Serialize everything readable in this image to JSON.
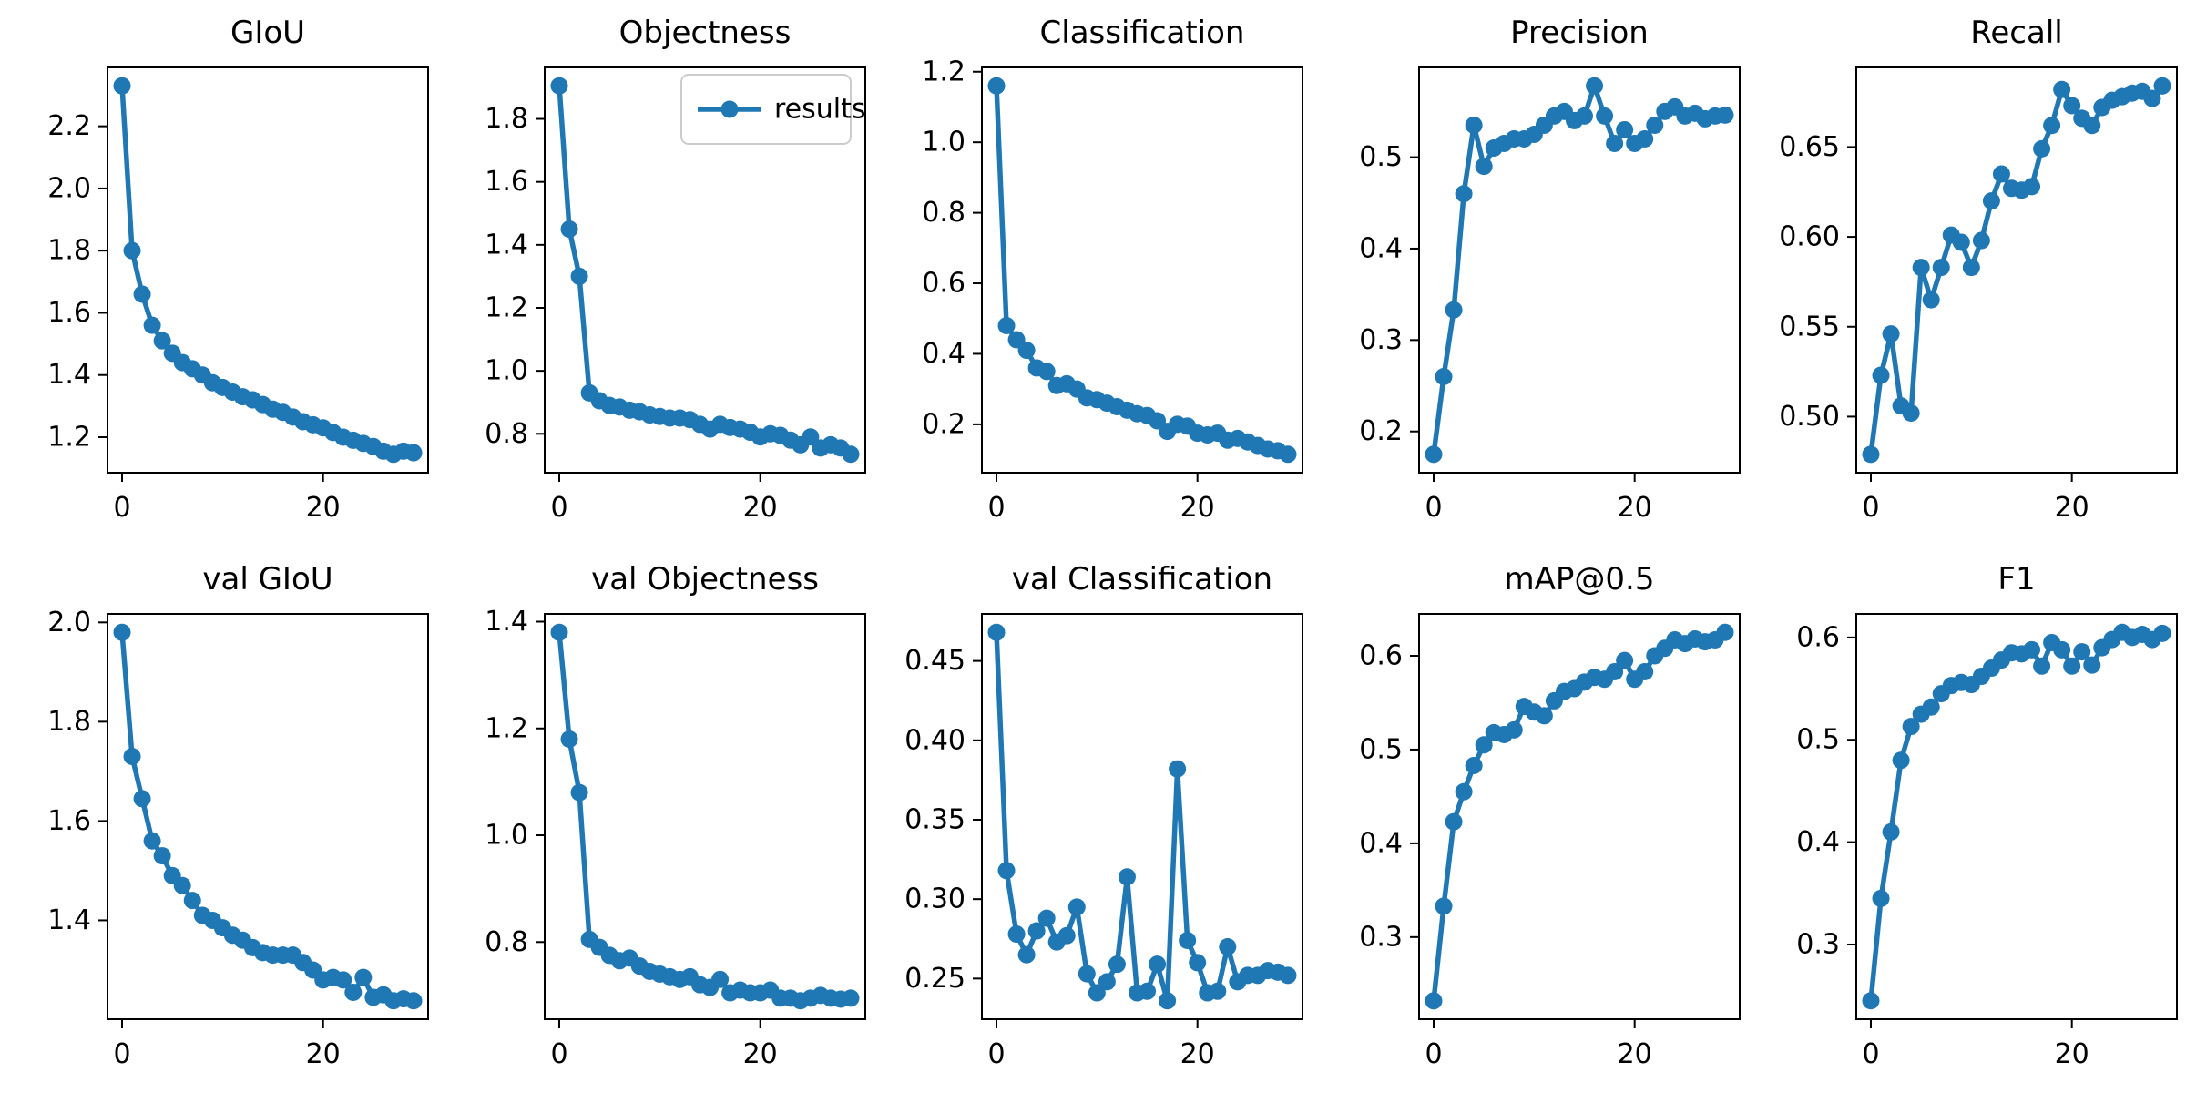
{
  "figure": {
    "background": "#ffffff",
    "accent_color": "#1f77b4",
    "spine_color": "#000000",
    "legend_label": "results",
    "legend_border_color": "#cccccc"
  },
  "chart_data": [
    {
      "type": "line",
      "title": "GIoU",
      "series_name": "results",
      "x": [
        0,
        1,
        2,
        3,
        4,
        5,
        6,
        7,
        8,
        9,
        10,
        11,
        12,
        13,
        14,
        15,
        16,
        17,
        18,
        19,
        20,
        21,
        22,
        23,
        24,
        25,
        26,
        27,
        28,
        29
      ],
      "values": [
        2.33,
        1.8,
        1.66,
        1.56,
        1.51,
        1.47,
        1.44,
        1.42,
        1.4,
        1.375,
        1.36,
        1.345,
        1.33,
        1.32,
        1.305,
        1.29,
        1.28,
        1.265,
        1.25,
        1.24,
        1.23,
        1.215,
        1.2,
        1.19,
        1.18,
        1.17,
        1.155,
        1.145,
        1.155,
        1.15
      ],
      "xlim": [
        -1.45,
        30.45
      ],
      "ylim": [
        1.0858,
        2.3893
      ],
      "xticks": [
        0,
        20
      ],
      "xtick_labels": [
        "0",
        "20"
      ],
      "yticks": [
        2.2,
        2.0,
        1.8,
        1.6,
        1.4,
        1.2
      ],
      "ytick_labels": [
        "2.2",
        "2.0",
        "1.8",
        "1.6",
        "1.4",
        "1.2"
      ],
      "legend": false,
      "grid": false
    },
    {
      "type": "line",
      "title": "Objectness",
      "series_name": "results",
      "x": [
        0,
        1,
        2,
        3,
        4,
        5,
        6,
        7,
        8,
        9,
        10,
        11,
        12,
        13,
        14,
        15,
        16,
        17,
        18,
        19,
        20,
        21,
        22,
        23,
        24,
        25,
        26,
        27,
        28,
        29
      ],
      "values": [
        1.905,
        1.45,
        1.3,
        0.93,
        0.905,
        0.89,
        0.885,
        0.875,
        0.87,
        0.86,
        0.855,
        0.85,
        0.85,
        0.845,
        0.83,
        0.815,
        0.83,
        0.82,
        0.815,
        0.805,
        0.79,
        0.8,
        0.795,
        0.78,
        0.765,
        0.79,
        0.755,
        0.765,
        0.755,
        0.735
      ],
      "xlim": [
        -1.45,
        30.45
      ],
      "ylim": [
        0.6765,
        1.9635
      ],
      "xticks": [
        0,
        20
      ],
      "xtick_labels": [
        "0",
        "20"
      ],
      "yticks": [
        1.8,
        1.6,
        1.4,
        1.2,
        1.0,
        0.8
      ],
      "ytick_labels": [
        "1.8",
        "1.6",
        "1.4",
        "1.2",
        "1.0",
        "0.8"
      ],
      "legend": true,
      "grid": false
    },
    {
      "type": "line",
      "title": "Classification",
      "series_name": "results",
      "x": [
        0,
        1,
        2,
        3,
        4,
        5,
        6,
        7,
        8,
        9,
        10,
        11,
        12,
        13,
        14,
        15,
        16,
        17,
        18,
        19,
        20,
        21,
        22,
        23,
        24,
        25,
        26,
        27,
        28,
        29
      ],
      "values": [
        1.16,
        0.48,
        0.44,
        0.41,
        0.36,
        0.35,
        0.31,
        0.315,
        0.3,
        0.275,
        0.27,
        0.26,
        0.25,
        0.24,
        0.23,
        0.225,
        0.21,
        0.18,
        0.2,
        0.195,
        0.175,
        0.17,
        0.175,
        0.155,
        0.16,
        0.15,
        0.14,
        0.13,
        0.125,
        0.115
      ],
      "xlim": [
        -1.45,
        30.45
      ],
      "ylim": [
        0.0628,
        1.2123
      ],
      "xticks": [
        0,
        20
      ],
      "xtick_labels": [
        "0",
        "20"
      ],
      "yticks": [
        1.2,
        1.0,
        0.8,
        0.6,
        0.4,
        0.2
      ],
      "ytick_labels": [
        "1.2",
        "1.0",
        "0.8",
        "0.6",
        "0.4",
        "0.2"
      ],
      "legend": false,
      "grid": false
    },
    {
      "type": "line",
      "title": "Precision",
      "series_name": "results",
      "x": [
        0,
        1,
        2,
        3,
        4,
        5,
        6,
        7,
        8,
        9,
        10,
        11,
        12,
        13,
        14,
        15,
        16,
        17,
        18,
        19,
        20,
        21,
        22,
        23,
        24,
        25,
        26,
        27,
        28,
        29
      ],
      "values": [
        0.175,
        0.26,
        0.333,
        0.46,
        0.535,
        0.49,
        0.51,
        0.515,
        0.52,
        0.52,
        0.525,
        0.535,
        0.545,
        0.55,
        0.54,
        0.545,
        0.578,
        0.545,
        0.515,
        0.53,
        0.515,
        0.52,
        0.535,
        0.55,
        0.555,
        0.545,
        0.548,
        0.542,
        0.545,
        0.546
      ],
      "xlim": [
        -1.45,
        30.45
      ],
      "ylim": [
        0.1549,
        0.5982
      ],
      "xticks": [
        0,
        20
      ],
      "xtick_labels": [
        "0",
        "20"
      ],
      "yticks": [
        0.5,
        0.4,
        0.3,
        0.2
      ],
      "ytick_labels": [
        "0.5",
        "0.4",
        "0.3",
        "0.2"
      ],
      "legend": false,
      "grid": false
    },
    {
      "type": "line",
      "title": "Recall",
      "series_name": "results",
      "x": [
        0,
        1,
        2,
        3,
        4,
        5,
        6,
        7,
        8,
        9,
        10,
        11,
        12,
        13,
        14,
        15,
        16,
        17,
        18,
        19,
        20,
        21,
        22,
        23,
        24,
        25,
        26,
        27,
        28,
        29
      ],
      "values": [
        0.479,
        0.523,
        0.546,
        0.506,
        0.502,
        0.583,
        0.565,
        0.583,
        0.601,
        0.597,
        0.583,
        0.598,
        0.62,
        0.635,
        0.627,
        0.626,
        0.628,
        0.649,
        0.662,
        0.682,
        0.673,
        0.666,
        0.662,
        0.672,
        0.676,
        0.678,
        0.68,
        0.681,
        0.677,
        0.684
      ],
      "xlim": [
        -1.45,
        30.45
      ],
      "ylim": [
        0.4688,
        0.6943
      ],
      "xticks": [
        0,
        20
      ],
      "xtick_labels": [
        "0",
        "20"
      ],
      "yticks": [
        0.65,
        0.6,
        0.55,
        0.5
      ],
      "ytick_labels": [
        "0.65",
        "0.60",
        "0.55",
        "0.50"
      ],
      "legend": false,
      "grid": false
    },
    {
      "type": "line",
      "title": "val GIoU",
      "series_name": "results",
      "x": [
        0,
        1,
        2,
        3,
        4,
        5,
        6,
        7,
        8,
        9,
        10,
        11,
        12,
        13,
        14,
        15,
        16,
        17,
        18,
        19,
        20,
        21,
        22,
        23,
        24,
        25,
        26,
        27,
        28,
        29
      ],
      "values": [
        1.98,
        1.73,
        1.645,
        1.56,
        1.53,
        1.49,
        1.47,
        1.44,
        1.41,
        1.4,
        1.385,
        1.37,
        1.36,
        1.345,
        1.335,
        1.33,
        1.33,
        1.33,
        1.315,
        1.3,
        1.28,
        1.285,
        1.28,
        1.255,
        1.285,
        1.245,
        1.25,
        1.238,
        1.242,
        1.238
      ],
      "xlim": [
        -1.45,
        30.45
      ],
      "ylim": [
        1.2009,
        2.0171
      ],
      "xticks": [
        0,
        20
      ],
      "xtick_labels": [
        "0",
        "20"
      ],
      "yticks": [
        2.0,
        1.8,
        1.6,
        1.4
      ],
      "ytick_labels": [
        "2.0",
        "1.8",
        "1.6",
        "1.4"
      ],
      "legend": false,
      "grid": false
    },
    {
      "type": "line",
      "title": "val Objectness",
      "series_name": "results",
      "x": [
        0,
        1,
        2,
        3,
        4,
        5,
        6,
        7,
        8,
        9,
        10,
        11,
        12,
        13,
        14,
        15,
        16,
        17,
        18,
        19,
        20,
        21,
        22,
        23,
        24,
        25,
        26,
        27,
        28,
        29
      ],
      "values": [
        1.38,
        1.18,
        1.08,
        0.805,
        0.79,
        0.775,
        0.765,
        0.77,
        0.755,
        0.745,
        0.74,
        0.735,
        0.73,
        0.735,
        0.72,
        0.715,
        0.73,
        0.705,
        0.71,
        0.705,
        0.705,
        0.71,
        0.695,
        0.695,
        0.69,
        0.695,
        0.7,
        0.695,
        0.693,
        0.695
      ],
      "xlim": [
        -1.45,
        30.45
      ],
      "ylim": [
        0.6555,
        1.4145
      ],
      "xticks": [
        0,
        20
      ],
      "xtick_labels": [
        "0",
        "20"
      ],
      "yticks": [
        1.4,
        1.2,
        1.0,
        0.8
      ],
      "ytick_labels": [
        "1.4",
        "1.2",
        "1.0",
        "0.8"
      ],
      "legend": false,
      "grid": false
    },
    {
      "type": "line",
      "title": "val Classification",
      "series_name": "results",
      "x": [
        0,
        1,
        2,
        3,
        4,
        5,
        6,
        7,
        8,
        9,
        10,
        11,
        12,
        13,
        14,
        15,
        16,
        17,
        18,
        19,
        20,
        21,
        22,
        23,
        24,
        25,
        26,
        27,
        28,
        29
      ],
      "values": [
        0.468,
        0.318,
        0.278,
        0.265,
        0.28,
        0.288,
        0.273,
        0.277,
        0.295,
        0.253,
        0.241,
        0.248,
        0.259,
        0.314,
        0.241,
        0.242,
        0.259,
        0.236,
        0.382,
        0.274,
        0.26,
        0.241,
        0.242,
        0.27,
        0.248,
        0.252,
        0.252,
        0.255,
        0.254,
        0.252
      ],
      "xlim": [
        -1.45,
        30.45
      ],
      "ylim": [
        0.2244,
        0.4796
      ],
      "xticks": [
        0,
        20
      ],
      "xtick_labels": [
        "0",
        "20"
      ],
      "yticks": [
        0.45,
        0.4,
        0.35,
        0.3,
        0.25
      ],
      "ytick_labels": [
        "0.45",
        "0.40",
        "0.35",
        "0.30",
        "0.25"
      ],
      "legend": false,
      "grid": false
    },
    {
      "type": "line",
      "title": "mAP@0.5",
      "series_name": "results",
      "x": [
        0,
        1,
        2,
        3,
        4,
        5,
        6,
        7,
        8,
        9,
        10,
        11,
        12,
        13,
        14,
        15,
        16,
        17,
        18,
        19,
        20,
        21,
        22,
        23,
        24,
        25,
        26,
        27,
        28,
        29
      ],
      "values": [
        0.232,
        0.333,
        0.423,
        0.455,
        0.483,
        0.505,
        0.518,
        0.516,
        0.521,
        0.546,
        0.54,
        0.536,
        0.552,
        0.562,
        0.565,
        0.572,
        0.577,
        0.575,
        0.583,
        0.595,
        0.575,
        0.583,
        0.6,
        0.608,
        0.617,
        0.613,
        0.618,
        0.615,
        0.617,
        0.625
      ],
      "xlim": [
        -1.45,
        30.45
      ],
      "ylim": [
        0.2124,
        0.6447
      ],
      "xticks": [
        0,
        20
      ],
      "xtick_labels": [
        "0",
        "20"
      ],
      "yticks": [
        0.6,
        0.5,
        0.4,
        0.3
      ],
      "ytick_labels": [
        "0.6",
        "0.5",
        "0.4",
        "0.3"
      ],
      "legend": false,
      "grid": false
    },
    {
      "type": "line",
      "title": "F1",
      "series_name": "results",
      "x": [
        0,
        1,
        2,
        3,
        4,
        5,
        6,
        7,
        8,
        9,
        10,
        11,
        12,
        13,
        14,
        15,
        16,
        17,
        18,
        19,
        20,
        21,
        22,
        23,
        24,
        25,
        26,
        27,
        28,
        29
      ],
      "values": [
        0.245,
        0.345,
        0.41,
        0.48,
        0.513,
        0.525,
        0.532,
        0.545,
        0.553,
        0.556,
        0.554,
        0.562,
        0.57,
        0.578,
        0.585,
        0.584,
        0.588,
        0.572,
        0.595,
        0.588,
        0.572,
        0.586,
        0.573,
        0.59,
        0.598,
        0.605,
        0.6,
        0.603,
        0.598,
        0.604
      ],
      "xlim": [
        -1.45,
        30.45
      ],
      "ylim": [
        0.227,
        0.623
      ],
      "xticks": [
        0,
        20
      ],
      "xtick_labels": [
        "0",
        "20"
      ],
      "yticks": [
        0.6,
        0.5,
        0.4,
        0.3
      ],
      "ytick_labels": [
        "0.6",
        "0.5",
        "0.4",
        "0.3"
      ],
      "legend": false,
      "grid": false
    }
  ]
}
